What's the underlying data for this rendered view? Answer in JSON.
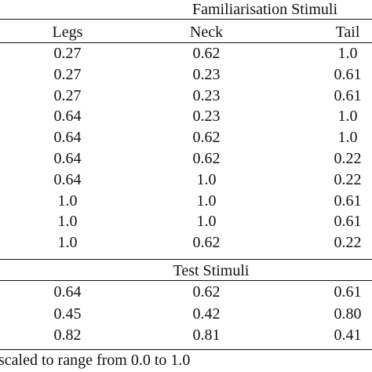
{
  "table": {
    "familiarisation_caption": "Familiarisation Stimuli",
    "headers": [
      "Legs",
      "Neck",
      "Tail"
    ],
    "familiarisation_rows": [
      [
        "0.27",
        "0.62",
        "1.0"
      ],
      [
        "0.27",
        "0.23",
        "0.61"
      ],
      [
        "0.27",
        "0.23",
        "0.61"
      ],
      [
        "0.64",
        "0.23",
        "1.0"
      ],
      [
        "0.64",
        "0.62",
        "1.0"
      ],
      [
        "0.64",
        "0.62",
        "0.22"
      ],
      [
        "0.64",
        "1.0",
        "0.22"
      ],
      [
        "1.0",
        "1.0",
        "0.61"
      ],
      [
        "1.0",
        "1.0",
        "0.61"
      ],
      [
        "1.0",
        "0.62",
        "0.22"
      ]
    ],
    "test_caption": "Test Stimuli",
    "test_rows": [
      [
        "0.64",
        "0.62",
        "0.61"
      ],
      [
        "0.45",
        "0.42",
        "0.80"
      ],
      [
        "0.82",
        "0.81",
        "0.41"
      ]
    ],
    "footnote": "scaled to range from 0.0 to 1.0"
  }
}
